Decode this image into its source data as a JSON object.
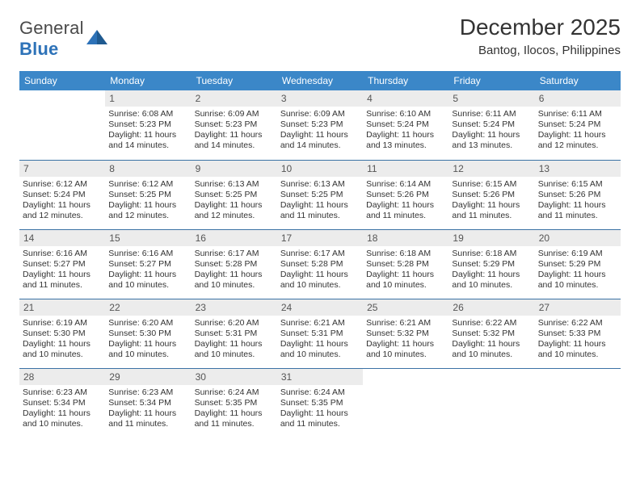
{
  "logo": {
    "word1": "General",
    "word2": "Blue"
  },
  "title": "December 2025",
  "subtitle": "Bantog, Ilocos, Philippines",
  "colors": {
    "header_bg": "#3b87c8",
    "row_divider": "#3b72a5",
    "daynum_bg": "#ececec",
    "logo_blue": "#2d72b8",
    "text": "#333333"
  },
  "weekdays": [
    "Sunday",
    "Monday",
    "Tuesday",
    "Wednesday",
    "Thursday",
    "Friday",
    "Saturday"
  ],
  "weeks": [
    [
      {
        "n": "",
        "lines": []
      },
      {
        "n": "1",
        "lines": [
          "Sunrise: 6:08 AM",
          "Sunset: 5:23 PM",
          "Daylight: 11 hours and 14 minutes."
        ]
      },
      {
        "n": "2",
        "lines": [
          "Sunrise: 6:09 AM",
          "Sunset: 5:23 PM",
          "Daylight: 11 hours and 14 minutes."
        ]
      },
      {
        "n": "3",
        "lines": [
          "Sunrise: 6:09 AM",
          "Sunset: 5:23 PM",
          "Daylight: 11 hours and 14 minutes."
        ]
      },
      {
        "n": "4",
        "lines": [
          "Sunrise: 6:10 AM",
          "Sunset: 5:24 PM",
          "Daylight: 11 hours and 13 minutes."
        ]
      },
      {
        "n": "5",
        "lines": [
          "Sunrise: 6:11 AM",
          "Sunset: 5:24 PM",
          "Daylight: 11 hours and 13 minutes."
        ]
      },
      {
        "n": "6",
        "lines": [
          "Sunrise: 6:11 AM",
          "Sunset: 5:24 PM",
          "Daylight: 11 hours and 12 minutes."
        ]
      }
    ],
    [
      {
        "n": "7",
        "lines": [
          "Sunrise: 6:12 AM",
          "Sunset: 5:24 PM",
          "Daylight: 11 hours and 12 minutes."
        ]
      },
      {
        "n": "8",
        "lines": [
          "Sunrise: 6:12 AM",
          "Sunset: 5:25 PM",
          "Daylight: 11 hours and 12 minutes."
        ]
      },
      {
        "n": "9",
        "lines": [
          "Sunrise: 6:13 AM",
          "Sunset: 5:25 PM",
          "Daylight: 11 hours and 12 minutes."
        ]
      },
      {
        "n": "10",
        "lines": [
          "Sunrise: 6:13 AM",
          "Sunset: 5:25 PM",
          "Daylight: 11 hours and 11 minutes."
        ]
      },
      {
        "n": "11",
        "lines": [
          "Sunrise: 6:14 AM",
          "Sunset: 5:26 PM",
          "Daylight: 11 hours and 11 minutes."
        ]
      },
      {
        "n": "12",
        "lines": [
          "Sunrise: 6:15 AM",
          "Sunset: 5:26 PM",
          "Daylight: 11 hours and 11 minutes."
        ]
      },
      {
        "n": "13",
        "lines": [
          "Sunrise: 6:15 AM",
          "Sunset: 5:26 PM",
          "Daylight: 11 hours and 11 minutes."
        ]
      }
    ],
    [
      {
        "n": "14",
        "lines": [
          "Sunrise: 6:16 AM",
          "Sunset: 5:27 PM",
          "Daylight: 11 hours and 11 minutes."
        ]
      },
      {
        "n": "15",
        "lines": [
          "Sunrise: 6:16 AM",
          "Sunset: 5:27 PM",
          "Daylight: 11 hours and 10 minutes."
        ]
      },
      {
        "n": "16",
        "lines": [
          "Sunrise: 6:17 AM",
          "Sunset: 5:28 PM",
          "Daylight: 11 hours and 10 minutes."
        ]
      },
      {
        "n": "17",
        "lines": [
          "Sunrise: 6:17 AM",
          "Sunset: 5:28 PM",
          "Daylight: 11 hours and 10 minutes."
        ]
      },
      {
        "n": "18",
        "lines": [
          "Sunrise: 6:18 AM",
          "Sunset: 5:28 PM",
          "Daylight: 11 hours and 10 minutes."
        ]
      },
      {
        "n": "19",
        "lines": [
          "Sunrise: 6:18 AM",
          "Sunset: 5:29 PM",
          "Daylight: 11 hours and 10 minutes."
        ]
      },
      {
        "n": "20",
        "lines": [
          "Sunrise: 6:19 AM",
          "Sunset: 5:29 PM",
          "Daylight: 11 hours and 10 minutes."
        ]
      }
    ],
    [
      {
        "n": "21",
        "lines": [
          "Sunrise: 6:19 AM",
          "Sunset: 5:30 PM",
          "Daylight: 11 hours and 10 minutes."
        ]
      },
      {
        "n": "22",
        "lines": [
          "Sunrise: 6:20 AM",
          "Sunset: 5:30 PM",
          "Daylight: 11 hours and 10 minutes."
        ]
      },
      {
        "n": "23",
        "lines": [
          "Sunrise: 6:20 AM",
          "Sunset: 5:31 PM",
          "Daylight: 11 hours and 10 minutes."
        ]
      },
      {
        "n": "24",
        "lines": [
          "Sunrise: 6:21 AM",
          "Sunset: 5:31 PM",
          "Daylight: 11 hours and 10 minutes."
        ]
      },
      {
        "n": "25",
        "lines": [
          "Sunrise: 6:21 AM",
          "Sunset: 5:32 PM",
          "Daylight: 11 hours and 10 minutes."
        ]
      },
      {
        "n": "26",
        "lines": [
          "Sunrise: 6:22 AM",
          "Sunset: 5:32 PM",
          "Daylight: 11 hours and 10 minutes."
        ]
      },
      {
        "n": "27",
        "lines": [
          "Sunrise: 6:22 AM",
          "Sunset: 5:33 PM",
          "Daylight: 11 hours and 10 minutes."
        ]
      }
    ],
    [
      {
        "n": "28",
        "lines": [
          "Sunrise: 6:23 AM",
          "Sunset: 5:34 PM",
          "Daylight: 11 hours and 10 minutes."
        ]
      },
      {
        "n": "29",
        "lines": [
          "Sunrise: 6:23 AM",
          "Sunset: 5:34 PM",
          "Daylight: 11 hours and 11 minutes."
        ]
      },
      {
        "n": "30",
        "lines": [
          "Sunrise: 6:24 AM",
          "Sunset: 5:35 PM",
          "Daylight: 11 hours and 11 minutes."
        ]
      },
      {
        "n": "31",
        "lines": [
          "Sunrise: 6:24 AM",
          "Sunset: 5:35 PM",
          "Daylight: 11 hours and 11 minutes."
        ]
      },
      {
        "n": "",
        "lines": []
      },
      {
        "n": "",
        "lines": []
      },
      {
        "n": "",
        "lines": []
      }
    ]
  ]
}
